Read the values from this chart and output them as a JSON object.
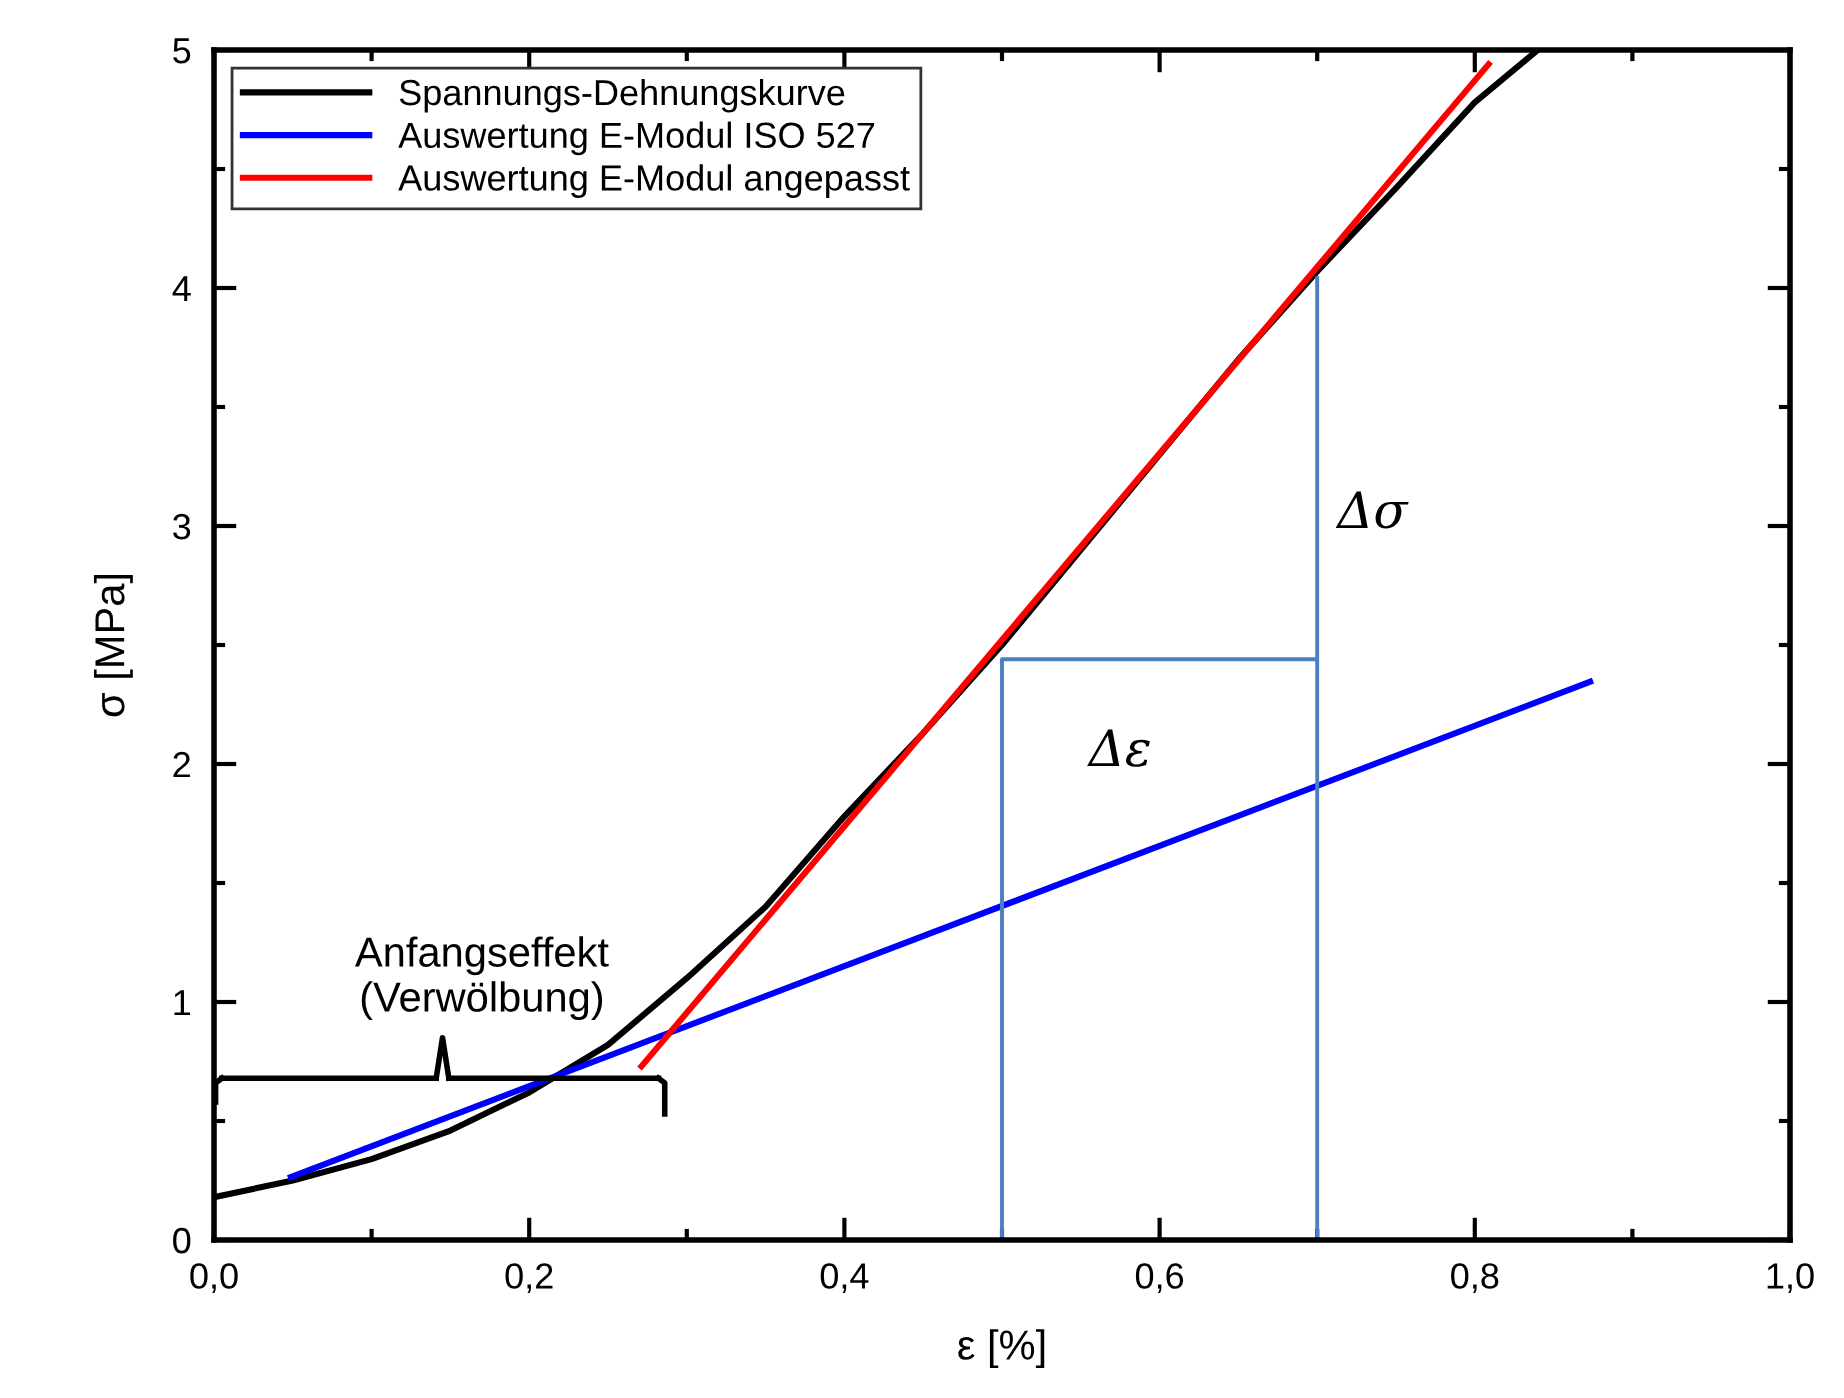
{
  "chart_data": {
    "type": "line",
    "xlabel": "ε [%]",
    "ylabel": "σ [MPa]",
    "xlim": [
      0,
      1
    ],
    "ylim": [
      0,
      5
    ],
    "xticks": [
      {
        "value": 0,
        "label": "0,0"
      },
      {
        "value": 0.1,
        "label": null
      },
      {
        "value": 0.2,
        "label": "0,2"
      },
      {
        "value": 0.3,
        "label": null
      },
      {
        "value": 0.4,
        "label": "0,4"
      },
      {
        "value": 0.5,
        "label": null
      },
      {
        "value": 0.6,
        "label": "0,6"
      },
      {
        "value": 0.7,
        "label": null
      },
      {
        "value": 0.8,
        "label": "0,8"
      },
      {
        "value": 0.9,
        "label": null
      },
      {
        "value": 1,
        "label": "1,0"
      }
    ],
    "yticks": [
      0,
      {
        "value": 0.5,
        "label": null
      },
      1,
      {
        "value": 1.5,
        "label": null
      },
      2,
      {
        "value": 2.5,
        "label": null
      },
      3,
      {
        "value": 3.5,
        "label": null
      },
      4,
      {
        "value": 4.5,
        "label": null
      },
      5
    ],
    "legend": "top left",
    "grid": false,
    "marker": "none",
    "line_style": "solid",
    "series": [
      {
        "name": "Spannungs-Dehnungskurve",
        "color": "#000000",
        "x": [
          0,
          0.05,
          0.1,
          0.15,
          0.2,
          0.25,
          0.3,
          0.35,
          0.4,
          0.45,
          0.5,
          0.55,
          0.6,
          0.65,
          0.7,
          0.75,
          0.8,
          0.84
        ],
        "values": [
          0.18,
          0.25,
          0.34,
          0.46,
          0.62,
          0.82,
          1.1,
          1.4,
          1.78,
          2.13,
          2.5,
          2.9,
          3.3,
          3.7,
          4.07,
          4.42,
          4.78,
          5.0
        ]
      },
      {
        "name": "Auswertung E-Modul ISO 527",
        "color": "#0000ff",
        "x": [
          0.047,
          0.875
        ],
        "values": [
          0.26,
          2.35
        ]
      },
      {
        "name": "Auswertung E-Modul angepasst",
        "color": "#ff0000",
        "x": [
          0.27,
          0.81
        ],
        "values": [
          0.72,
          4.95
        ]
      },
      {
        "color": "#4a7fc1",
        "x": [
          0.5,
          0.5,
          0.7
        ],
        "values": [
          0,
          2.44,
          2.44
        ]
      },
      {
        "color": "#4a7fc1",
        "x": [
          0.7,
          0.7
        ],
        "values": [
          0,
          4.05
        ]
      }
    ],
    "annotations": [
      "Anfangseffekt\n(Verwölbung)",
      "Δσ",
      "Δε"
    ]
  }
}
